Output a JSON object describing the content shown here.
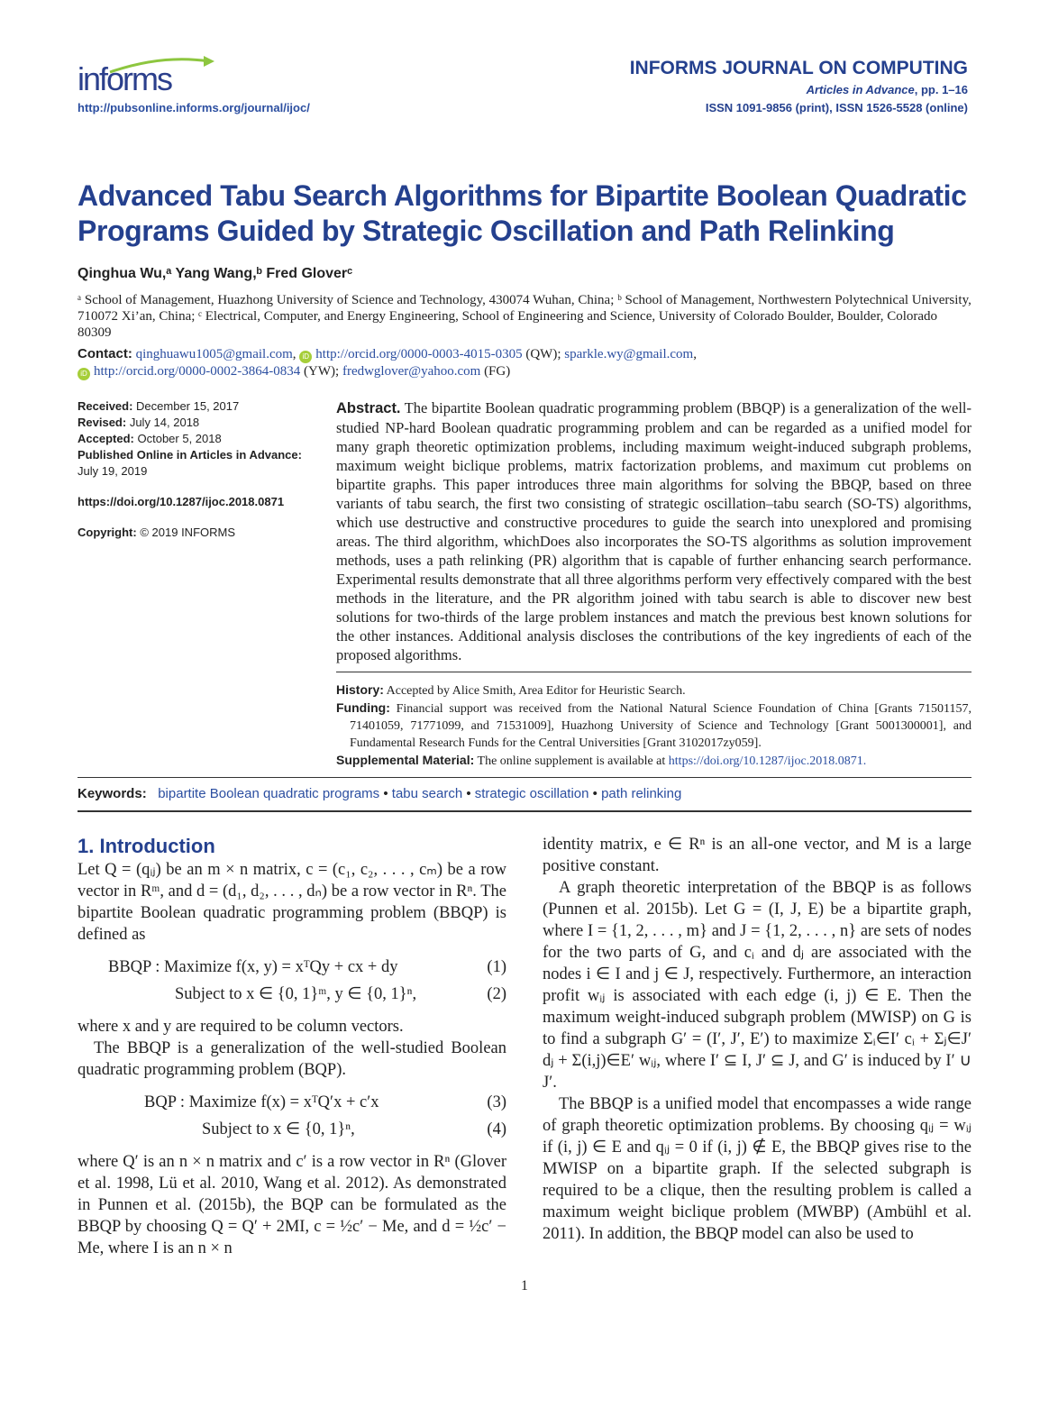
{
  "header": {
    "logo": "informs",
    "url": "http://pubsonline.informs.org/journal/ijoc/",
    "journal": "INFORMS JOURNAL ON COMPUTING",
    "series": "Articles in Advance",
    "pages": ", pp. 1–16",
    "issn": "ISSN 1091-9856 (print), ISSN 1526-5528 (online)"
  },
  "title": "Advanced Tabu Search Algorithms for Bipartite Boolean Quadratic Programs Guided by Strategic Oscillation and Path Relinking",
  "authors": "Qinghua Wu,ᵃ Yang Wang,ᵇ Fred Gloverᶜ",
  "affiliations": "ᵃ School of Management, Huazhong University of Science and Technology, 430074 Wuhan, China; ᵇ School of Management, Northwestern Polytechnical University, 710072 Xi’an, China; ᶜ Electrical, Computer, and Energy Engineering, School of Engineering and Science, University of Colorado Boulder, Boulder, Colorado 80309",
  "contact": {
    "label": "Contact:",
    "email1": "qinghuawu1005@gmail.com",
    "orcid1": "http://orcid.org/0000-0003-4015-0305",
    "tag1": "(QW);",
    "email2": "sparkle.wy@gmail.com",
    "orcid2": "http://orcid.org/0000-0002-3864-0834",
    "tag2": "(YW);",
    "email3": "fredwglover@yahoo.com",
    "tag3": "(FG)"
  },
  "meta": {
    "received_label": "Received:",
    "received": "December 15, 2017",
    "revised_label": "Revised:",
    "revised": "July 14, 2018",
    "accepted_label": "Accepted:",
    "accepted": "October 5, 2018",
    "published_label": "Published Online in Articles in Advance:",
    "published": "July 19, 2019",
    "doi": "https://doi.org/10.1287/ijoc.2018.0871",
    "copyright_label": "Copyright:",
    "copyright": "© 2019 INFORMS"
  },
  "abstract": {
    "label": "Abstract.",
    "text": "The bipartite Boolean quadratic programming problem (BBQP) is a generalization of the well-studied NP-hard Boolean quadratic programming problem and can be regarded as a unified model for many graph theoretic optimization problems, including maximum weight-induced subgraph problems, maximum weight biclique problems, matrix factorization problems, and maximum cut problems on bipartite graphs. This paper introduces three main algorithms for solving the BBQP, based on three variants of tabu search, the first two consisting of strategic oscillation–tabu search (SO-TS) algorithms, which use destructive and constructive procedures to guide the search into unexplored and promising areas. The third algorithm, whichDoes also incorporates the SO-TS algorithms as solution improvement methods, uses a path relinking (PR) algorithm that is capable of further enhancing search performance. Experimental results demonstrate that all three algorithms perform very effectively compared with the best methods in the literature, and the PR algorithm joined with tabu search is able to discover new best solutions for two-thirds of the large problem instances and match the previous best known solutions for the other instances. Additional analysis discloses the contributions of the key ingredients of each of the proposed algorithms."
  },
  "history": {
    "history_label": "History:",
    "history": "Accepted by Alice Smith, Area Editor for Heuristic Search.",
    "funding_label": "Funding:",
    "funding": "Financial support was received from the National Natural Science Foundation of China [Grants 71501157, 71401059, 71771099, and 71531009], Huazhong University of Science and Technology [Grant 5001300001], and Fundamental Research Funds for the Central Universities [Grant 3102017zy059].",
    "supp_label": "Supplemental Material:",
    "supp": "The online supplement is available at",
    "supp_link": "https://doi.org/10.1287/ijoc.2018.0871."
  },
  "keywords": {
    "label": "Keywords:",
    "items": [
      "bipartite Boolean quadratic programs",
      "tabu search",
      "strategic oscillation",
      "path relinking"
    ]
  },
  "body": {
    "heading": "1. Introduction",
    "p1": "Let Q = (qᵢⱼ) be an m × n matrix, c = (c₁, c₂, . . . , cₘ) be a row vector in Rᵐ, and d = (d₁, d₂, . . . , dₙ) be a row vector in Rⁿ. The bipartite Boolean quadratic programming problem (BBQP) is defined as",
    "eq1": "BBQP :  Maximize  f(x, y) = xᵀQy + cx + dy",
    "eq1n": "(1)",
    "eq2": "Subject to   x ∈ {0, 1}ᵐ, y ∈ {0, 1}ⁿ,",
    "eq2n": "(2)",
    "p2": "where x and y are required to be column vectors.",
    "p3": "The BBQP is a generalization of the well-studied Boolean quadratic programming problem (BQP).",
    "eq3": "BQP :  Maximize   f(x) = xᵀQ′x + c′x",
    "eq3n": "(3)",
    "eq4": "Subject to   x ∈ {0, 1}ⁿ,",
    "eq4n": "(4)",
    "p4": "where Q′ is an n × n matrix and c′ is a row vector in Rⁿ (Glover et al. 1998, Lü et al. 2010, Wang et al. 2012). As demonstrated in Punnen et al. (2015b), the BQP can be formulated as the BBQP by choosing Q = Q′ + 2MI, c = ½c′ − Me, and d = ½c′ − Me, where I is an n × n",
    "r1": "identity matrix, e ∈ Rⁿ is an all-one vector, and M is a large positive constant.",
    "r2": "A graph theoretic interpretation of the BBQP is as follows (Punnen et al. 2015b). Let G = (I, J, E) be a bipartite graph, where I = {1, 2, . . . , m} and J = {1, 2, . . . , n} are sets of nodes for the two parts of G, and cᵢ and dⱼ are associated with the nodes i ∈ I and j ∈ J, respectively. Furthermore, an interaction profit wᵢⱼ is associated with each edge (i, j) ∈ E. Then the maximum weight-induced subgraph problem (MWISP) on G is to find a subgraph G′ = (I′, J′, E′) to maximize Σᵢ∈I′ cᵢ + Σⱼ∈J′ dⱼ + Σ(i,j)∈E′ wᵢⱼ, where I′ ⊆ I, J′ ⊆ J, and G′ is induced by I′ ∪ J′.",
    "r3": "The BBQP is a unified model that encompasses a wide range of graph theoretic optimization problems. By choosing qᵢⱼ = wᵢⱼ if (i, j) ∈ E and qᵢⱼ = 0 if (i, j) ∉ E, the BBQP gives rise to the MWISP on a bipartite graph. If the selected subgraph is required to be a clique, then the resulting problem is called a maximum weight biclique problem (MWBP) (Ambühl et al. 2011). In addition, the BBQP model can also be used to"
  },
  "page_number": "1",
  "colors": {
    "title_blue": "#24408e",
    "link_blue": "#2b4ea0",
    "orcid_green": "#a6ce39",
    "logo_green": "#8dc63f"
  }
}
